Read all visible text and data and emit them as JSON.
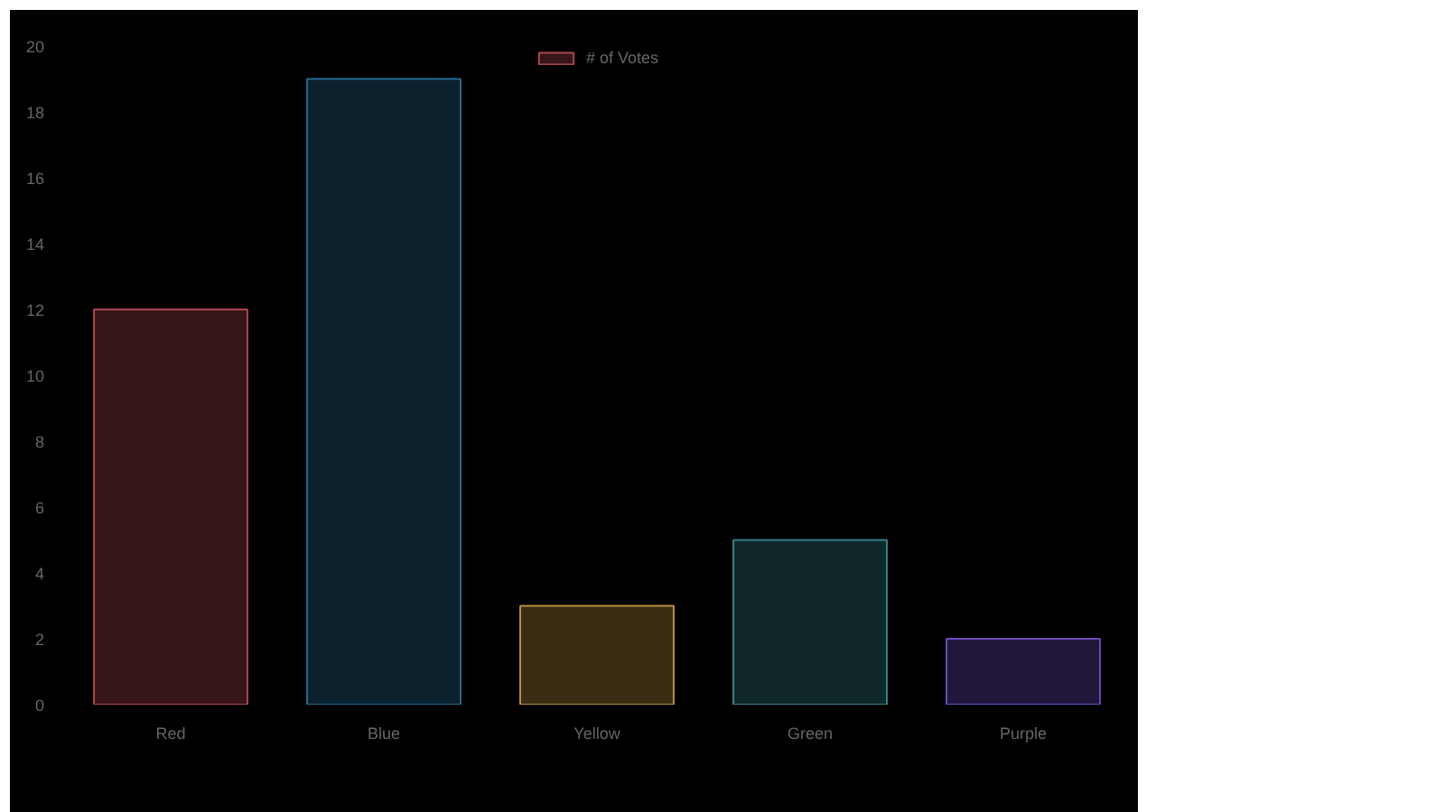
{
  "chart_data": {
    "type": "bar",
    "categories": [
      "Red",
      "Blue",
      "Yellow",
      "Green",
      "Purple"
    ],
    "series": [
      {
        "name": "# of Votes",
        "values": [
          12,
          19,
          3,
          5,
          2
        ],
        "colors": [
          "#361619",
          "#0b212e",
          "#392d14",
          "#11282a",
          "#22173a"
        ]
      }
    ],
    "ylim": [
      0,
      20
    ],
    "yticks": [
      0,
      2,
      4,
      6,
      8,
      10,
      12,
      14,
      16,
      18,
      20
    ],
    "grid": false,
    "legend": "top"
  }
}
